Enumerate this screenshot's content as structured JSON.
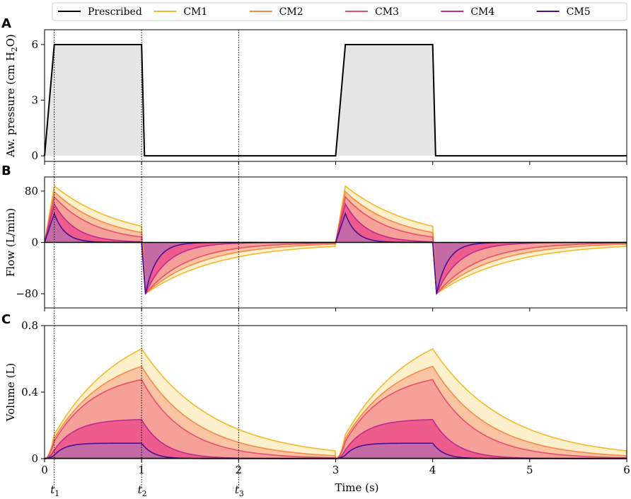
{
  "chart_data": {
    "type": "line",
    "legend": {
      "placement": "top",
      "entries": [
        {
          "label": "Prescribed",
          "color": "#000000"
        },
        {
          "label": "CM1",
          "color": "#f4b92b"
        },
        {
          "label": "CM2",
          "color": "#f58a4a"
        },
        {
          "label": "CM3",
          "color": "#e5506b"
        },
        {
          "label": "CM4",
          "color": "#c12a8f"
        },
        {
          "label": "CM5",
          "color": "#4a0f92"
        }
      ]
    },
    "fill_colors": [
      "#fdf0cc",
      "#fbc4a3",
      "#f6a09a",
      "#ee5c8e",
      "#c56aa4"
    ],
    "x_axis": {
      "label": "Time (s)",
      "range": [
        0,
        6
      ],
      "ticks": [
        "0",
        "1",
        "2",
        "3",
        "4",
        "5",
        "6"
      ]
    },
    "markers": [
      {
        "label": "t",
        "sub": "1",
        "x": 0.1
      },
      {
        "label": "t",
        "sub": "2",
        "x": 1.0
      },
      {
        "label": "t",
        "sub": "3",
        "x": 2.0
      }
    ],
    "models": [
      {
        "name": "CM1",
        "tau": 0.72,
        "peak_flow": 88,
        "vmax": 0.66
      },
      {
        "name": "CM2",
        "tau": 0.55,
        "peak_flow": 79,
        "vmax": 0.555
      },
      {
        "name": "CM3",
        "tau": 0.42,
        "peak_flow": 71,
        "vmax": 0.475
      },
      {
        "name": "CM4",
        "tau": 0.22,
        "peak_flow": 60,
        "vmax": 0.235
      },
      {
        "name": "CM5",
        "tau": 0.11,
        "peak_flow": 45,
        "vmax": 0.093
      }
    ],
    "panels": [
      {
        "letter": "A",
        "ylabel": "Aw. pressure (cm H",
        "ylabel_sub": "2",
        "ylabel_tail": "O)",
        "ylim": [
          -0.3,
          6.8
        ],
        "yticks": [
          {
            "v": 0,
            "t": "0"
          },
          {
            "v": 3,
            "t": "3"
          },
          {
            "v": 6,
            "t": "6"
          }
        ],
        "prescribed": {
          "level": 6,
          "cycles": [
            {
              "on": 0,
              "rise_end": 0.1,
              "off": 1.0,
              "fall_end": 1.03
            },
            {
              "on": 3,
              "rise_end": 3.1,
              "off": 4.0,
              "fall_end": 4.03
            }
          ]
        }
      },
      {
        "letter": "B",
        "ylabel": "Flow (L/min)",
        "ylim": [
          -102,
          102
        ],
        "yticks": [
          {
            "v": -80,
            "t": "−80"
          },
          {
            "v": 0,
            "t": "0"
          },
          {
            "v": 80,
            "t": "80"
          }
        ]
      },
      {
        "letter": "C",
        "ylabel": "Volume (L)",
        "ylim": [
          0,
          0.8
        ],
        "yticks": [
          {
            "v": 0,
            "t": "0"
          },
          {
            "v": 0.4,
            "t": "0.4"
          },
          {
            "v": 0.8,
            "t": "0.8"
          }
        ]
      }
    ]
  }
}
